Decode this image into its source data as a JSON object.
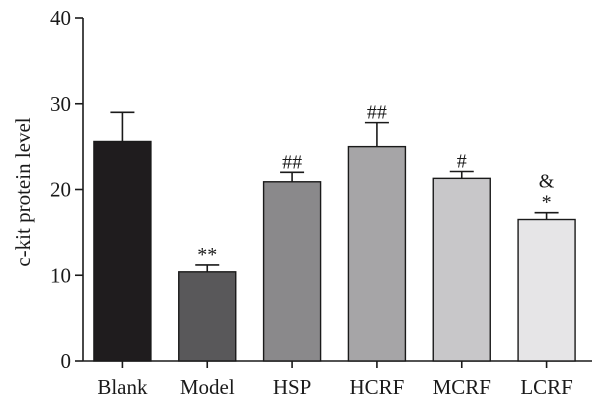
{
  "chart_data": {
    "type": "bar",
    "ylabel": "c-kit protein level",
    "xlabel": "",
    "title": "",
    "ylim": [
      0,
      40
    ],
    "yticks": [
      0,
      10,
      20,
      30,
      40
    ],
    "grid": false,
    "categories": [
      "Blank",
      "Model",
      "HSP",
      "HCRF",
      "MCRF",
      "LCRF"
    ],
    "values": [
      25.6,
      10.4,
      20.9,
      25.0,
      21.3,
      16.5
    ],
    "errors": [
      3.4,
      0.8,
      1.1,
      2.8,
      0.8,
      0.8
    ],
    "bar_colors": [
      "#1f1c1e",
      "#59585a",
      "#8a898b",
      "#a6a5a7",
      "#c8c7c9",
      "#e6e5e7"
    ],
    "annotations": [
      [],
      [
        "**"
      ],
      [
        "##"
      ],
      [
        "##"
      ],
      [
        "#"
      ],
      [
        "*",
        "&"
      ]
    ]
  }
}
